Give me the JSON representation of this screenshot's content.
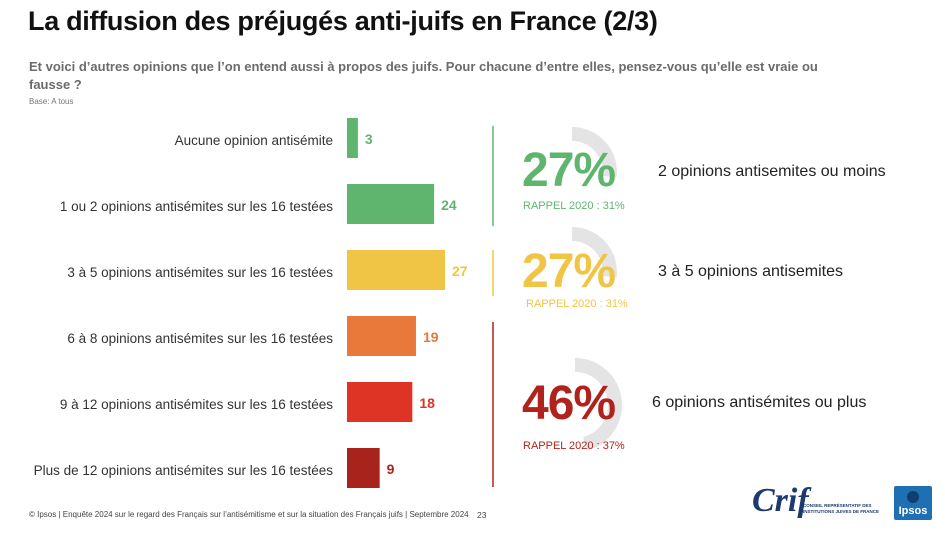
{
  "header": {
    "title": "La diffusion des préjugés anti-juifs en France (2/3)",
    "question": "Et voici d’autres opinions que l’on entend aussi à propos des juifs. Pour chacune d’entre elles, pensez-vous qu’elle est vraie ou fausse ?",
    "base": "Base: A tous"
  },
  "chart_data": {
    "type": "bar",
    "orientation": "horizontal",
    "categories": [
      "Aucune opinion antisémite",
      "1 ou 2 opinions antisémites sur les 16 testées",
      "3 à 5 opinions antisémites sur les 16 testées",
      "6 à 8 opinions antisémites sur les 16 testées",
      "9 à 12 opinions antisémites sur les 16 testées",
      "Plus de 12 opinions antisémites sur les 16 testées"
    ],
    "values": [
      3,
      24,
      27,
      19,
      18,
      9
    ],
    "value_labels": [
      "3",
      "24",
      "27",
      "19",
      "18",
      "9"
    ],
    "colors": [
      "#5fb56e",
      "#5fb56e",
      "#f0c545",
      "#e8793a",
      "#de3426",
      "#a9231d"
    ],
    "xlim": [
      0,
      30
    ],
    "unit": "%"
  },
  "summary": [
    {
      "value": "27%",
      "rappel": "RAPPEL 2020 : 31%",
      "label": "2 opinions antisemites ou moins",
      "color": "#5fb56e",
      "fraction": 0.27
    },
    {
      "value": "27%",
      "rappel": "RAPPEL 2020 : 31%",
      "label": "3 à 5 opinions antisemites",
      "color": "#f0c545",
      "fraction": 0.27
    },
    {
      "value": "46%",
      "rappel": "RAPPEL 2020 : 37%",
      "label": "6 opinions antisémites ou plus",
      "color": "#b0231c",
      "fraction": 0.46
    }
  ],
  "footer": {
    "source": "© Ipsos | Enquête 2024 sur le regard des Français sur l’antisémitisme et sur la situation des Français juifs | Septembre 2024",
    "page": "23"
  },
  "logos": {
    "crif": "Crif",
    "crif_sub": "CONSEIL REPRÉSENTATIF DES INSTITUTIONS JUIVES DE FRANCE",
    "ipsos": "Ipsos"
  }
}
